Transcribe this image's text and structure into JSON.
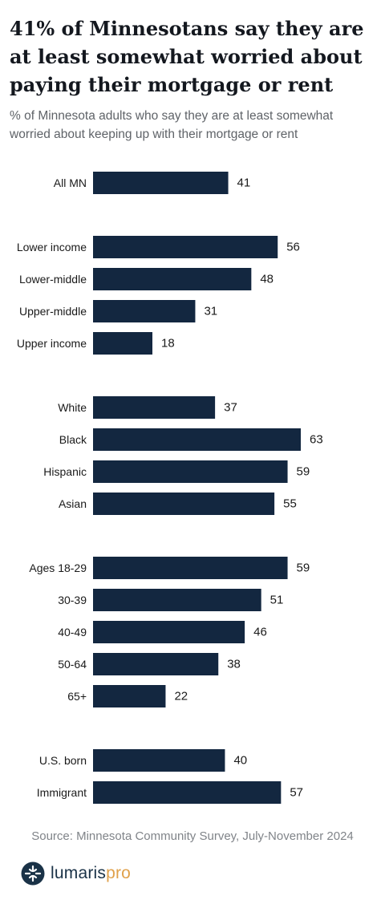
{
  "title": "41% of Minnesotans say they are at least somewhat worried about paying their mortgage or rent",
  "subtitle": "% of Minnesota adults who say they are at least somewhat worried about keeping up with their mortgage or rent",
  "source": "Source: Minnesota Community Survey, July-November 2024",
  "brand": {
    "name_part1": "lumaris",
    "name_part2": "pro",
    "color_dark": "#1a3247",
    "color_accent": "#e0a14b"
  },
  "colors": {
    "bar": "#132740",
    "label": "#1a1a1a"
  },
  "chart_data": {
    "type": "bar",
    "orientation": "horizontal",
    "groups": [
      {
        "categories": [
          "All MN"
        ],
        "values": [
          41
        ]
      },
      {
        "categories": [
          "Lower income",
          "Lower-middle",
          "Upper-middle",
          "Upper income"
        ],
        "values": [
          56,
          48,
          31,
          18
        ]
      },
      {
        "categories": [
          "White",
          "Black",
          "Hispanic",
          "Asian"
        ],
        "values": [
          37,
          63,
          59,
          55
        ]
      },
      {
        "categories": [
          "Ages 18-29",
          "30-39",
          "40-49",
          "50-64",
          "65+"
        ],
        "values": [
          59,
          51,
          46,
          38,
          22
        ]
      },
      {
        "categories": [
          "U.S. born",
          "Immigrant"
        ],
        "values": [
          40,
          57
        ]
      }
    ],
    "xlim": [
      0,
      63
    ],
    "grid": false,
    "legend": "none"
  }
}
